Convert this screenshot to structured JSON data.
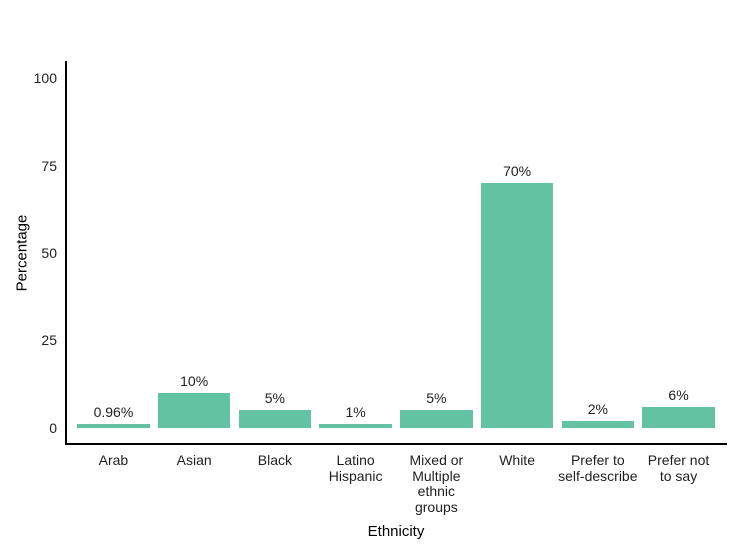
{
  "chart_data": {
    "type": "bar",
    "xlabel": "Ethnicity",
    "ylabel": "Percentage",
    "categories": [
      "Arab",
      "Asian",
      "Black",
      "Latino Hispanic",
      "Mixed or Multiple ethnic groups",
      "White",
      "Prefer to self-describe",
      "Prefer not to say"
    ],
    "category_label_lines": [
      [
        "Arab"
      ],
      [
        "Asian"
      ],
      [
        "Black"
      ],
      [
        "Latino",
        "Hispanic"
      ],
      [
        "Mixed or",
        "Multiple",
        "ethnic",
        "groups"
      ],
      [
        "White"
      ],
      [
        "Prefer to",
        "self-describe"
      ],
      [
        "Prefer not",
        "to say"
      ]
    ],
    "values": [
      0.96,
      10,
      5,
      1,
      5,
      70,
      2,
      6
    ],
    "value_labels": [
      "0.96%",
      "10%",
      "5%",
      "1%",
      "5%",
      "70%",
      "2%",
      "6%"
    ],
    "yticks": [
      0,
      25,
      50,
      75,
      100
    ],
    "ylim": [
      0,
      100
    ],
    "grid": false,
    "legend": null,
    "bar_color": "#63C2A2",
    "axis_color": "#000000",
    "text_color": "#1f1f1f",
    "background": "#ffffff"
  }
}
